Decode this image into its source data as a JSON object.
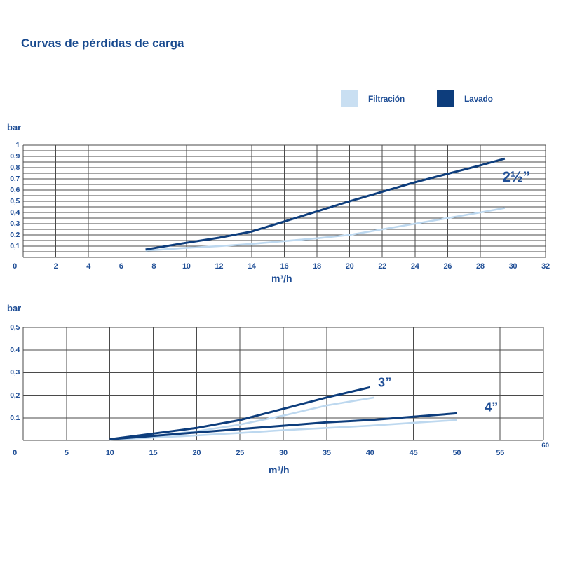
{
  "page": {
    "title": "Curvas de pérdidas de carga"
  },
  "legend": {
    "items": [
      {
        "label": "Filtración",
        "key": "filtracion"
      },
      {
        "label": "Lavado",
        "key": "lavado"
      }
    ]
  },
  "colors": {
    "title": "#17498e",
    "text": "#1f4e96",
    "grid": "#4a4a4a",
    "filtracion": "#bdd8ef",
    "filtracion_swatch": "#c9dff2",
    "lavado": "#0d3d7c"
  },
  "chart_data": [
    {
      "type": "line",
      "ylabel": "bar",
      "xlabel": "m³/h",
      "xlim": [
        0,
        32
      ],
      "ylim": [
        0,
        1
      ],
      "x_grid_step": 2,
      "y_grid_step": 0.05,
      "grid": "on",
      "xticks": [
        "0",
        "2",
        "4",
        "6",
        "8",
        "10",
        "12",
        "14",
        "16",
        "18",
        "20",
        "22",
        "24",
        "26",
        "28",
        "30",
        "32"
      ],
      "yticks": [
        "1",
        "0,9",
        "0,8",
        "0,7",
        "0,6",
        "0,5",
        "0,4",
        "0,3",
        "0,2",
        "0,1"
      ],
      "series": [
        {
          "name": "Filtración 2½\"",
          "key": "filtracion",
          "x": [
            7.5,
            10,
            12,
            14,
            16,
            18,
            20,
            22,
            24,
            26,
            28,
            29.5
          ],
          "y": [
            0.06,
            0.085,
            0.1,
            0.12,
            0.145,
            0.17,
            0.2,
            0.25,
            0.3,
            0.35,
            0.4,
            0.44
          ]
        },
        {
          "name": "Lavado 2½\"",
          "key": "lavado",
          "x": [
            7.5,
            10,
            12,
            14,
            16,
            18,
            20,
            22,
            24,
            26,
            28,
            29.5
          ],
          "y": [
            0.07,
            0.13,
            0.175,
            0.23,
            0.32,
            0.41,
            0.5,
            0.585,
            0.67,
            0.745,
            0.82,
            0.88
          ]
        }
      ],
      "annotations": [
        {
          "id": "2-1-2-inch",
          "text": "2½”",
          "x": 30.2,
          "y": 0.715
        }
      ]
    },
    {
      "type": "line",
      "ylabel": "bar",
      "xlabel": "m³/h",
      "xlim": [
        0,
        60
      ],
      "ylim": [
        0,
        0.5
      ],
      "x_grid_step": 5,
      "y_grid_step": 0.1,
      "grid": "on",
      "xticks": [
        "0",
        "5",
        "10",
        "15",
        "20",
        "25",
        "30",
        "35",
        "40",
        "45",
        "50",
        "55"
      ],
      "end_tick": "60",
      "yticks": [
        "0,5",
        "0,4",
        "0,3",
        "0,2",
        "0,1"
      ],
      "series": [
        {
          "name": "Filtración 3\"",
          "key": "filtracion",
          "x": [
            10,
            15,
            20,
            25,
            30,
            35,
            40.5
          ],
          "y": [
            0.005,
            0.02,
            0.04,
            0.07,
            0.11,
            0.155,
            0.19
          ]
        },
        {
          "name": "Filtración 4\"",
          "key": "filtracion",
          "x": [
            10,
            15,
            20,
            25,
            30,
            35,
            40,
            45,
            50
          ],
          "y": [
            0.003,
            0.012,
            0.022,
            0.033,
            0.045,
            0.055,
            0.065,
            0.078,
            0.09
          ]
        },
        {
          "name": "Lavado 3\"",
          "key": "lavado",
          "x": [
            10,
            15,
            20,
            25,
            30,
            35,
            40
          ],
          "y": [
            0.005,
            0.03,
            0.055,
            0.09,
            0.14,
            0.19,
            0.235
          ]
        },
        {
          "name": "Lavado 4\"",
          "key": "lavado",
          "x": [
            10,
            15,
            20,
            25,
            30,
            35,
            40,
            45,
            50
          ],
          "y": [
            0.005,
            0.02,
            0.035,
            0.05,
            0.065,
            0.08,
            0.09,
            0.105,
            0.12
          ]
        }
      ],
      "annotations": [
        {
          "id": "3-inch",
          "text": "3”",
          "x": 41.7,
          "y": 0.255
        },
        {
          "id": "4-inch",
          "text": "4”",
          "x": 54.0,
          "y": 0.147
        }
      ]
    }
  ]
}
